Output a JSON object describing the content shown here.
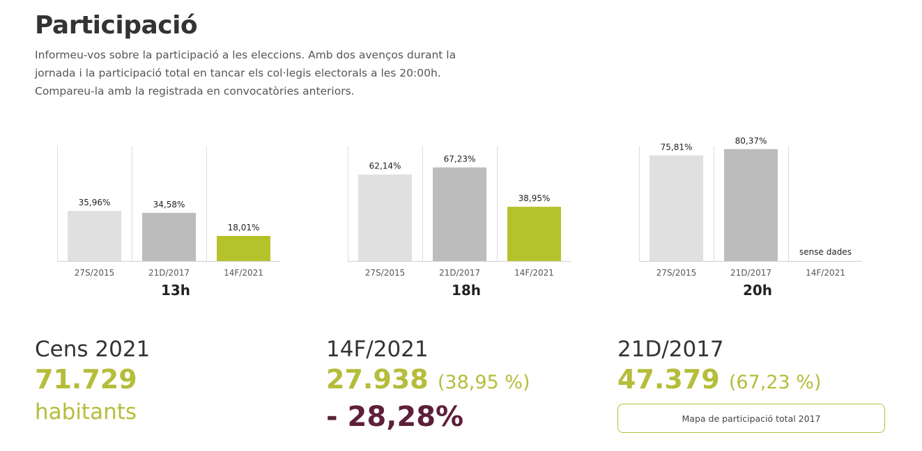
{
  "header": {
    "title": "Participació",
    "intro": "Informeu-vos sobre la participació a les eleccions. Amb dos avenços durant la jornada i la participació total en tancar els col·legis electorals a les 20:00h. Compareu-la amb la registrada en convocatòries anteriors."
  },
  "colors": {
    "bar_2015": "#e0e0e0",
    "bar_2017": "#bcbcbc",
    "bar_2021": "#b5c22a",
    "accent": "#b5bd3a",
    "negative": "#5e1f3a"
  },
  "chart_data": [
    {
      "type": "bar",
      "title": "13h",
      "categories": [
        "27S/2015",
        "21D/2017",
        "14F/2021"
      ],
      "values": [
        35.96,
        34.58,
        18.01
      ],
      "labels": [
        "35,96%",
        "34,58%",
        "18,01%"
      ],
      "ylim": [
        0,
        85
      ],
      "grid": true
    },
    {
      "type": "bar",
      "title": "18h",
      "categories": [
        "27S/2015",
        "21D/2017",
        "14F/2021"
      ],
      "values": [
        62.14,
        67.23,
        38.95
      ],
      "labels": [
        "62,14%",
        "67,23%",
        "38,95%"
      ],
      "ylim": [
        0,
        85
      ],
      "grid": true
    },
    {
      "type": "bar",
      "title": "20h",
      "categories": [
        "27S/2015",
        "21D/2017",
        "14F/2021"
      ],
      "values": [
        75.81,
        80.37,
        null
      ],
      "labels": [
        "75,81%",
        "80,37%",
        "sense dades"
      ],
      "ylim": [
        0,
        85
      ],
      "grid": true
    }
  ],
  "stats": {
    "cens": {
      "label": "Cens 2021",
      "value": "71.729",
      "unit": "habitants"
    },
    "current": {
      "label": "14F/2021",
      "value": "27.938",
      "percent": "(38,95 %)",
      "diff": "- 28,28%"
    },
    "previous": {
      "label": "21D/2017",
      "value": "47.379",
      "percent": "(67,23 %)"
    }
  },
  "map_button_label": "Mapa de participació total 2017"
}
